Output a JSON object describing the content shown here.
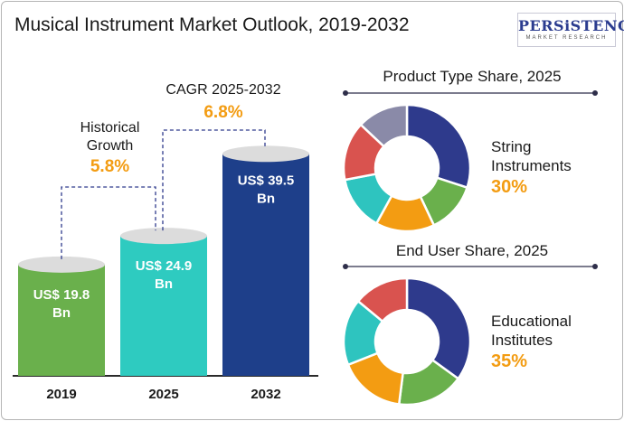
{
  "title": "Musical Instrument Market Outlook, 2019-2032",
  "logo": {
    "word": "PERSiSTENCE",
    "sub": "MARKET RESEARCH"
  },
  "chart_data": [
    {
      "type": "bar",
      "categories": [
        "2019",
        "2025",
        "2032"
      ],
      "values": [
        19.8,
        24.9,
        39.5
      ],
      "value_labels": [
        "US$ 19.8 Bn",
        "US$ 24.9 Bn",
        "US$ 39.5 Bn"
      ],
      "colors": [
        "#6ab04c",
        "#2ecbc0",
        "#1e3f8a"
      ],
      "annotations": [
        {
          "label": "Historical Growth",
          "value": "5.8%"
        },
        {
          "label": "CAGR 2025-2032",
          "value": "6.8%"
        }
      ]
    },
    {
      "type": "pie",
      "title": "Product Type Share, 2025",
      "highlight_label": "String Instruments",
      "highlight_value": "30%",
      "values": [
        30,
        13,
        15,
        14,
        15,
        13
      ],
      "colors": [
        "#2e3a8c",
        "#6ab04c",
        "#f39c12",
        "#2ec4bf",
        "#d9534f",
        "#8a8aa8"
      ]
    },
    {
      "type": "pie",
      "title": "End User Share, 2025",
      "highlight_label": "Educational Institutes",
      "highlight_value": "35%",
      "values": [
        35,
        17,
        17,
        17,
        14
      ],
      "colors": [
        "#2e3a8c",
        "#6ab04c",
        "#f39c12",
        "#2ec4bf",
        "#d9534f"
      ]
    }
  ]
}
